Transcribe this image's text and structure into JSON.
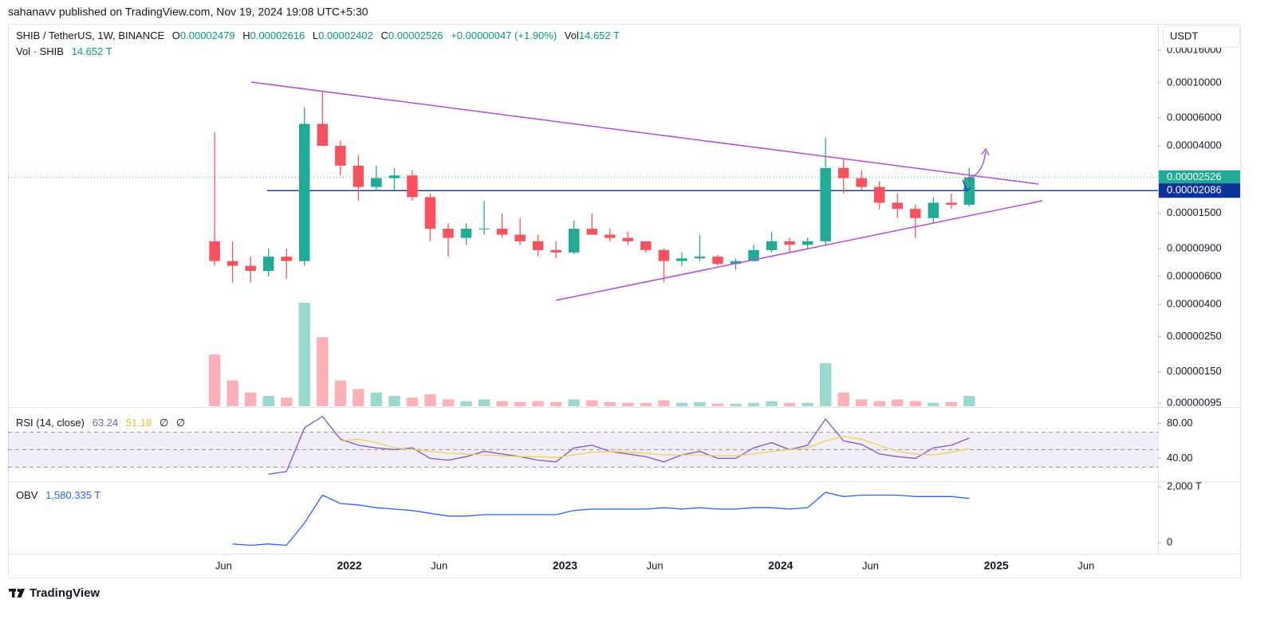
{
  "publisher": "sahanavv published on TradingView.com, Nov 19, 2024 19:08 UTC+5:30",
  "legend": {
    "symbol": "SHIB / TetherUS, 1W, BINANCE",
    "o": "O",
    "open": "0.00002479",
    "h": "H",
    "high": "0.00002616",
    "l": "L",
    "low": "0.00002402",
    "c": "C",
    "close": "0.00002526",
    "change": "+0.00000047 (+1.90%)",
    "vol": "Vol",
    "vol_value": "14.652 T",
    "vol_title": "Vol · SHIB",
    "vol_value2": "14.652 T"
  },
  "currency": "USDT",
  "brand": "TradingView",
  "chart_data": [
    {
      "type": "candlestick",
      "log_scale": true,
      "grid": false,
      "up_color": "#22ab94",
      "down_color": "#f7525f",
      "x": [
        "2021-05",
        "2021-06",
        "2021-07",
        "2021-08",
        "2021-09",
        "2021-10",
        "2021-11",
        "2021-12",
        "2022-01",
        "2022-02",
        "2022-03",
        "2022-04",
        "2022-05",
        "2022-06",
        "2022-07",
        "2022-08",
        "2022-09",
        "2022-10",
        "2022-11",
        "2022-12",
        "2023-01",
        "2023-02",
        "2023-03",
        "2023-04",
        "2023-05",
        "2023-06",
        "2023-07",
        "2023-08",
        "2023-09",
        "2023-10",
        "2023-11",
        "2023-12",
        "2024-01",
        "2024-02",
        "2024-03",
        "2024-04",
        "2024-05",
        "2024-06",
        "2024-07",
        "2024-08",
        "2024-09",
        "2024-10",
        "2024-11"
      ],
      "open": [
        1e-05,
        7.5e-06,
        7e-06,
        6.5e-06,
        8e-06,
        7.5e-06,
        5.5e-05,
        4e-05,
        3e-05,
        2.2e-05,
        2.5e-05,
        2.6e-05,
        1.9e-05,
        1.2e-05,
        1.05e-05,
        1.2e-05,
        1.2e-05,
        1.1e-05,
        1e-05,
        8.8e-06,
        8.5e-06,
        1.2e-05,
        1.1e-05,
        1.05e-05,
        1e-05,
        8.8e-06,
        7.5e-06,
        7.8e-06,
        8e-06,
        7.2e-06,
        7.5e-06,
        8.8e-06,
        1e-05,
        9.5e-06,
        1e-05,
        2.9e-05,
        2.5e-05,
        2.2e-05,
        1.75e-05,
        1.6e-05,
        1.4e-05,
        1.75e-05,
        1.7e-05
      ],
      "high": [
        4.9e-05,
        1e-05,
        8e-06,
        9e-06,
        9e-06,
        7e-05,
        8.8e-05,
        4.3e-05,
        3.5e-05,
        3e-05,
        2.9e-05,
        2.8e-05,
        2e-05,
        1.3e-05,
        1.3e-05,
        1.8e-05,
        1.5e-05,
        1.4e-05,
        1.1e-05,
        1e-05,
        1.35e-05,
        1.5e-05,
        1.2e-05,
        1.15e-05,
        1e-05,
        9e-06,
        8.5e-06,
        1.1e-05,
        8.2e-06,
        7.8e-06,
        9.5e-06,
        1.15e-05,
        1.05e-05,
        1.05e-05,
        4.5e-05,
        3.3e-05,
        2.8e-05,
        2.4e-05,
        2e-05,
        1.7e-05,
        1.9e-05,
        2e-05,
        2.9e-05
      ],
      "low": [
        7e-06,
        5.5e-06,
        5.5e-06,
        6e-06,
        5.8e-06,
        7e-06,
        4e-05,
        2.6e-05,
        1.8e-05,
        2.1e-05,
        2.1e-05,
        1.8e-05,
        1e-05,
        8e-06,
        9.5e-06,
        1.1e-05,
        1.05e-05,
        9.5e-06,
        8e-06,
        7.8e-06,
        8.3e-06,
        1.1e-05,
        1e-05,
        9.5e-06,
        8.5e-06,
        5.5e-06,
        7e-06,
        7.5e-06,
        7e-06,
        6.6e-06,
        7.4e-06,
        8.5e-06,
        8.5e-06,
        9e-06,
        9.5e-06,
        2e-05,
        2.1e-05,
        1.6e-05,
        1.4e-05,
        1.05e-05,
        1.3e-05,
        1.6e-05,
        1.65e-05
      ],
      "close": [
        7.5e-06,
        7e-06,
        6.5e-06,
        8e-06,
        7.5e-06,
        5.5e-05,
        4e-05,
        3e-05,
        2.2e-05,
        2.5e-05,
        2.6e-05,
        1.9e-05,
        1.2e-05,
        1.05e-05,
        1.2e-05,
        1.2e-05,
        1.1e-05,
        1e-05,
        8.8e-06,
        8.5e-06,
        1.2e-05,
        1.1e-05,
        1.05e-05,
        1e-05,
        8.8e-06,
        7.5e-06,
        7.8e-06,
        8e-06,
        7.2e-06,
        7.5e-06,
        8.8e-06,
        1e-05,
        9.5e-06,
        1e-05,
        2.9e-05,
        2.5e-05,
        2.2e-05,
        1.75e-05,
        1.6e-05,
        1.4e-05,
        1.75e-05,
        1.7e-05,
        2.526e-05
      ],
      "volume": [
        300,
        150,
        80,
        60,
        50,
        600,
        400,
        150,
        100,
        80,
        60,
        50,
        70,
        40,
        30,
        40,
        30,
        25,
        30,
        25,
        40,
        35,
        25,
        20,
        20,
        35,
        20,
        25,
        15,
        15,
        20,
        30,
        20,
        20,
        250,
        80,
        40,
        30,
        40,
        30,
        20,
        25,
        60
      ],
      "xlim": [
        "2020-06",
        "2025-10"
      ],
      "xticks": [
        {
          "value": "2021-06",
          "label": "Jun"
        },
        {
          "value": "2022-01",
          "label": "2022"
        },
        {
          "value": "2022-06",
          "label": "Jun"
        },
        {
          "value": "2023-01",
          "label": "2023"
        },
        {
          "value": "2023-06",
          "label": "Jun"
        },
        {
          "value": "2024-01",
          "label": "2024"
        },
        {
          "value": "2024-06",
          "label": "Jun"
        },
        {
          "value": "2025-01",
          "label": "2025"
        },
        {
          "value": "2025-06",
          "label": "Jun"
        }
      ],
      "ylim": [
        9.1e-07,
        0.000235
      ],
      "yticks": [
        {
          "value": 0.00016,
          "label": "0.00016000"
        },
        {
          "value": 0.0001,
          "label": "0.00010000"
        },
        {
          "value": 6e-05,
          "label": "0.00006000"
        },
        {
          "value": 4e-05,
          "label": "0.00004000"
        },
        {
          "value": 1.5e-05,
          "label": "0.00001500"
        },
        {
          "value": 9e-06,
          "label": "0.00000900"
        },
        {
          "value": 6e-06,
          "label": "0.00000600"
        },
        {
          "value": 4e-06,
          "label": "0.00000400"
        },
        {
          "value": 2.5e-06,
          "label": "0.00000250"
        },
        {
          "value": 1.5e-06,
          "label": "0.00000150"
        },
        {
          "value": 9.5e-07,
          "label": "0.00000095"
        }
      ],
      "price_lines": [
        {
          "value": 2.526e-05,
          "label": "0.00002526",
          "color": "#22ab94"
        },
        {
          "value": 2.086e-05,
          "label": "0.00002086",
          "color": "#0c3299"
        }
      ]
    },
    {
      "type": "line",
      "title": "RSI (14, close)",
      "extras": [
        "∅",
        "∅"
      ],
      "series": [
        {
          "color": "#7e57c2",
          "values": [
            null,
            null,
            null,
            22,
            25,
            75,
            88,
            62,
            55,
            52,
            50,
            52,
            40,
            38,
            42,
            48,
            45,
            42,
            38,
            36,
            52,
            55,
            48,
            45,
            42,
            36,
            44,
            48,
            40,
            40,
            52,
            58,
            50,
            55,
            85,
            60,
            56,
            45,
            42,
            40,
            52,
            55,
            63.24
          ]
        },
        {
          "color": "#f2d247",
          "values": [
            null,
            null,
            null,
            null,
            null,
            null,
            null,
            60,
            62,
            58,
            52,
            50,
            48,
            46,
            45,
            44,
            43,
            42,
            42,
            41,
            44,
            47,
            48,
            47,
            46,
            44,
            44,
            44,
            43,
            43,
            45,
            48,
            50,
            52,
            60,
            65,
            62,
            55,
            48,
            45,
            44,
            47,
            51.18
          ]
        }
      ],
      "levels": [
        30,
        50,
        70
      ],
      "ylim": [
        14,
        97.7
      ],
      "yticks": [
        {
          "value": 80,
          "label": "80.00"
        },
        {
          "value": 40,
          "label": "40.00"
        }
      ]
    },
    {
      "type": "line",
      "title": "OBV",
      "last_label": "1,580.335 T",
      "series": [
        {
          "color": "#2962ff",
          "values": [
            null,
            -50,
            -100,
            -50,
            -100,
            700,
            1700,
            1400,
            1350,
            1250,
            1200,
            1150,
            1050,
            950,
            950,
            1000,
            1000,
            1000,
            1000,
            1000,
            1150,
            1200,
            1200,
            1200,
            1200,
            1250,
            1200,
            1250,
            1200,
            1200,
            1250,
            1250,
            1200,
            1250,
            1800,
            1650,
            1700,
            1700,
            1700,
            1650,
            1650,
            1650,
            1580.335
          ]
        }
      ],
      "ylim": [
        -400,
        2143
      ],
      "yticks": [
        {
          "value": 2000,
          "label": "2,000 T"
        },
        0
      ]
    }
  ]
}
